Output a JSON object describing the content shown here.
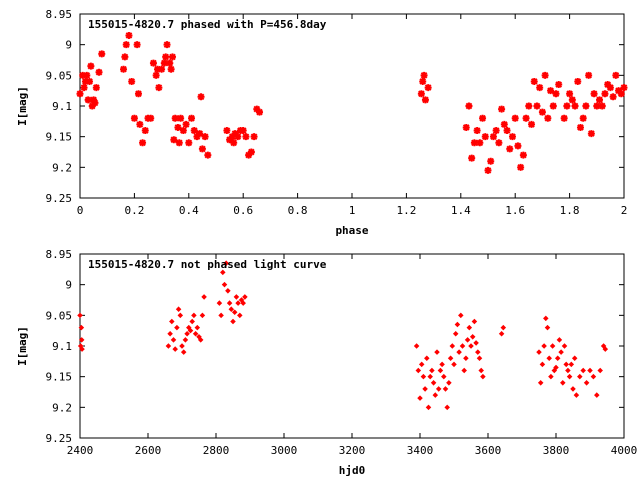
{
  "chart_data": [
    {
      "type": "scatter",
      "title": "155015-4820.7 phased with P=456.8day",
      "xlabel": "phase",
      "ylabel": "I[mag]",
      "xlim": [
        0,
        2
      ],
      "ylim": [
        9.25,
        8.95
      ],
      "y_inverted": true,
      "xticks": [
        "0",
        "0.2",
        "0.4",
        "0.6",
        "0.8",
        "1",
        "1.2",
        "1.4",
        "1.6",
        "1.8",
        "2"
      ],
      "yticks": [
        "8.95",
        "9",
        "9.05",
        "9.1",
        "9.15",
        "9.2",
        "9.25"
      ],
      "grid": false,
      "legend": "none",
      "marker_color": "#ff0000",
      "marker": "asterisk",
      "points": [
        [
          0.0,
          9.08
        ],
        [
          0.01,
          9.05
        ],
        [
          0.015,
          9.07
        ],
        [
          0.02,
          9.06
        ],
        [
          0.025,
          9.05
        ],
        [
          0.03,
          9.09
        ],
        [
          0.035,
          9.06
        ],
        [
          0.04,
          9.035
        ],
        [
          0.045,
          9.1
        ],
        [
          0.05,
          9.09
        ],
        [
          0.055,
          9.095
        ],
        [
          0.06,
          9.07
        ],
        [
          0.07,
          9.045
        ],
        [
          0.08,
          9.015
        ],
        [
          0.16,
          9.04
        ],
        [
          0.165,
          9.02
        ],
        [
          0.17,
          9.0
        ],
        [
          0.18,
          8.985
        ],
        [
          0.19,
          9.06
        ],
        [
          0.2,
          9.12
        ],
        [
          0.21,
          9.0
        ],
        [
          0.215,
          9.08
        ],
        [
          0.22,
          9.13
        ],
        [
          0.23,
          9.16
        ],
        [
          0.24,
          9.14
        ],
        [
          0.25,
          9.12
        ],
        [
          0.26,
          9.12
        ],
        [
          0.27,
          9.03
        ],
        [
          0.28,
          9.05
        ],
        [
          0.285,
          9.04
        ],
        [
          0.29,
          9.07
        ],
        [
          0.3,
          9.04
        ],
        [
          0.31,
          9.03
        ],
        [
          0.315,
          9.02
        ],
        [
          0.32,
          9.0
        ],
        [
          0.33,
          9.03
        ],
        [
          0.335,
          9.04
        ],
        [
          0.34,
          9.02
        ],
        [
          0.345,
          9.155
        ],
        [
          0.35,
          9.12
        ],
        [
          0.36,
          9.135
        ],
        [
          0.365,
          9.16
        ],
        [
          0.37,
          9.12
        ],
        [
          0.38,
          9.14
        ],
        [
          0.39,
          9.13
        ],
        [
          0.4,
          9.16
        ],
        [
          0.41,
          9.12
        ],
        [
          0.42,
          9.14
        ],
        [
          0.43,
          9.15
        ],
        [
          0.44,
          9.145
        ],
        [
          0.445,
          9.085
        ],
        [
          0.45,
          9.17
        ],
        [
          0.46,
          9.15
        ],
        [
          0.47,
          9.18
        ],
        [
          0.54,
          9.14
        ],
        [
          0.55,
          9.155
        ],
        [
          0.56,
          9.15
        ],
        [
          0.565,
          9.16
        ],
        [
          0.57,
          9.145
        ],
        [
          0.58,
          9.15
        ],
        [
          0.59,
          9.14
        ],
        [
          0.6,
          9.14
        ],
        [
          0.61,
          9.15
        ],
        [
          0.62,
          9.18
        ],
        [
          0.63,
          9.175
        ],
        [
          0.64,
          9.15
        ],
        [
          0.65,
          9.105
        ],
        [
          0.66,
          9.11
        ],
        [
          1.255,
          9.08
        ],
        [
          1.26,
          9.06
        ],
        [
          1.265,
          9.05
        ],
        [
          1.27,
          9.09
        ],
        [
          1.28,
          9.07
        ],
        [
          1.42,
          9.135
        ],
        [
          1.43,
          9.1
        ],
        [
          1.44,
          9.185
        ],
        [
          1.45,
          9.16
        ],
        [
          1.46,
          9.14
        ],
        [
          1.47,
          9.16
        ],
        [
          1.48,
          9.12
        ],
        [
          1.49,
          9.15
        ],
        [
          1.5,
          9.205
        ],
        [
          1.51,
          9.19
        ],
        [
          1.52,
          9.15
        ],
        [
          1.53,
          9.14
        ],
        [
          1.54,
          9.16
        ],
        [
          1.55,
          9.105
        ],
        [
          1.56,
          9.13
        ],
        [
          1.57,
          9.14
        ],
        [
          1.58,
          9.17
        ],
        [
          1.59,
          9.15
        ],
        [
          1.6,
          9.12
        ],
        [
          1.61,
          9.165
        ],
        [
          1.62,
          9.2
        ],
        [
          1.63,
          9.18
        ],
        [
          1.64,
          9.12
        ],
        [
          1.65,
          9.1
        ],
        [
          1.66,
          9.13
        ],
        [
          1.67,
          9.06
        ],
        [
          1.68,
          9.1
        ],
        [
          1.69,
          9.07
        ],
        [
          1.7,
          9.11
        ],
        [
          1.71,
          9.05
        ],
        [
          1.72,
          9.12
        ],
        [
          1.73,
          9.075
        ],
        [
          1.74,
          9.1
        ],
        [
          1.75,
          9.08
        ],
        [
          1.76,
          9.065
        ],
        [
          1.78,
          9.12
        ],
        [
          1.79,
          9.1
        ],
        [
          1.8,
          9.08
        ],
        [
          1.81,
          9.09
        ],
        [
          1.82,
          9.1
        ],
        [
          1.83,
          9.06
        ],
        [
          1.84,
          9.135
        ],
        [
          1.85,
          9.12
        ],
        [
          1.86,
          9.1
        ],
        [
          1.87,
          9.05
        ],
        [
          1.88,
          9.145
        ],
        [
          1.89,
          9.08
        ],
        [
          1.9,
          9.1
        ],
        [
          1.91,
          9.09
        ],
        [
          1.92,
          9.1
        ],
        [
          1.93,
          9.08
        ],
        [
          1.94,
          9.065
        ],
        [
          1.95,
          9.07
        ],
        [
          1.96,
          9.085
        ],
        [
          1.97,
          9.05
        ],
        [
          1.98,
          9.075
        ],
        [
          1.99,
          9.08
        ],
        [
          2.0,
          9.07
        ]
      ]
    },
    {
      "type": "scatter",
      "title": "155015-4820.7 not phased light curve",
      "xlabel": "hjd0",
      "ylabel": "I[mag]",
      "xlim": [
        2400,
        4000
      ],
      "ylim": [
        9.25,
        8.95
      ],
      "y_inverted": true,
      "xticks": [
        "2400",
        "2600",
        "2800",
        "3000",
        "3200",
        "3400",
        "3600",
        "3800",
        "4000"
      ],
      "yticks": [
        "8.95",
        "9",
        "9.05",
        "9.1",
        "9.15",
        "9.2",
        "9.25"
      ],
      "grid": false,
      "legend": "none",
      "marker_color": "#ff0000",
      "marker": "diamond",
      "points": [
        [
          2400,
          9.05
        ],
        [
          2402,
          9.1
        ],
        [
          2404,
          9.07
        ],
        [
          2405,
          9.09
        ],
        [
          2406,
          9.105
        ],
        [
          2660,
          9.1
        ],
        [
          2665,
          9.08
        ],
        [
          2670,
          9.06
        ],
        [
          2675,
          9.09
        ],
        [
          2680,
          9.105
        ],
        [
          2685,
          9.07
        ],
        [
          2690,
          9.04
        ],
        [
          2695,
          9.05
        ],
        [
          2700,
          9.1
        ],
        [
          2705,
          9.11
        ],
        [
          2710,
          9.09
        ],
        [
          2715,
          9.08
        ],
        [
          2720,
          9.07
        ],
        [
          2725,
          9.075
        ],
        [
          2730,
          9.06
        ],
        [
          2735,
          9.05
        ],
        [
          2740,
          9.08
        ],
        [
          2745,
          9.07
        ],
        [
          2750,
          9.085
        ],
        [
          2755,
          9.09
        ],
        [
          2760,
          9.05
        ],
        [
          2765,
          9.02
        ],
        [
          2810,
          9.03
        ],
        [
          2815,
          9.05
        ],
        [
          2820,
          8.98
        ],
        [
          2825,
          9.0
        ],
        [
          2830,
          8.965
        ],
        [
          2835,
          9.01
        ],
        [
          2840,
          9.03
        ],
        [
          2845,
          9.04
        ],
        [
          2850,
          9.06
        ],
        [
          2855,
          9.045
        ],
        [
          2860,
          9.02
        ],
        [
          2865,
          9.03
        ],
        [
          2870,
          9.05
        ],
        [
          2875,
          9.025
        ],
        [
          2880,
          9.03
        ],
        [
          2885,
          9.02
        ],
        [
          3390,
          9.1
        ],
        [
          3395,
          9.14
        ],
        [
          3400,
          9.185
        ],
        [
          3405,
          9.13
        ],
        [
          3410,
          9.15
        ],
        [
          3415,
          9.17
        ],
        [
          3420,
          9.12
        ],
        [
          3425,
          9.2
        ],
        [
          3430,
          9.15
        ],
        [
          3435,
          9.14
        ],
        [
          3440,
          9.16
        ],
        [
          3445,
          9.18
        ],
        [
          3450,
          9.11
        ],
        [
          3455,
          9.17
        ],
        [
          3460,
          9.14
        ],
        [
          3465,
          9.13
        ],
        [
          3470,
          9.15
        ],
        [
          3475,
          9.17
        ],
        [
          3480,
          9.2
        ],
        [
          3485,
          9.16
        ],
        [
          3490,
          9.12
        ],
        [
          3495,
          9.1
        ],
        [
          3500,
          9.13
        ],
        [
          3505,
          9.08
        ],
        [
          3510,
          9.065
        ],
        [
          3515,
          9.11
        ],
        [
          3520,
          9.05
        ],
        [
          3525,
          9.1
        ],
        [
          3530,
          9.14
        ],
        [
          3535,
          9.12
        ],
        [
          3540,
          9.09
        ],
        [
          3545,
          9.07
        ],
        [
          3550,
          9.1
        ],
        [
          3555,
          9.085
        ],
        [
          3560,
          9.06
        ],
        [
          3565,
          9.095
        ],
        [
          3570,
          9.11
        ],
        [
          3575,
          9.12
        ],
        [
          3580,
          9.14
        ],
        [
          3585,
          9.15
        ],
        [
          3640,
          9.08
        ],
        [
          3645,
          9.07
        ],
        [
          3750,
          9.11
        ],
        [
          3755,
          9.16
        ],
        [
          3760,
          9.13
        ],
        [
          3765,
          9.1
        ],
        [
          3770,
          9.055
        ],
        [
          3775,
          9.07
        ],
        [
          3780,
          9.12
        ],
        [
          3785,
          9.15
        ],
        [
          3790,
          9.1
        ],
        [
          3795,
          9.14
        ],
        [
          3800,
          9.135
        ],
        [
          3805,
          9.12
        ],
        [
          3810,
          9.09
        ],
        [
          3815,
          9.11
        ],
        [
          3820,
          9.16
        ],
        [
          3825,
          9.1
        ],
        [
          3830,
          9.13
        ],
        [
          3835,
          9.14
        ],
        [
          3840,
          9.15
        ],
        [
          3845,
          9.13
        ],
        [
          3850,
          9.17
        ],
        [
          3855,
          9.12
        ],
        [
          3860,
          9.18
        ],
        [
          3870,
          9.15
        ],
        [
          3880,
          9.14
        ],
        [
          3890,
          9.16
        ],
        [
          3900,
          9.14
        ],
        [
          3910,
          9.15
        ],
        [
          3920,
          9.18
        ],
        [
          3930,
          9.14
        ],
        [
          3940,
          9.1
        ],
        [
          3945,
          9.105
        ]
      ]
    }
  ]
}
